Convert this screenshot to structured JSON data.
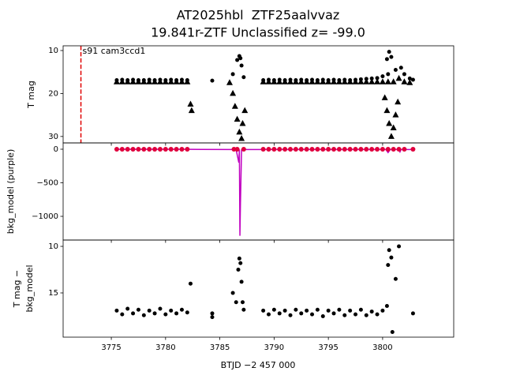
{
  "chart_data": [
    {
      "type": "scatter",
      "title": [
        "AT2025hbl  ZTF25aalvvaz",
        "19.841r-ZTF Unclassified z= -99.0"
      ],
      "ylabel": [
        "T mag"
      ],
      "xlim": [
        3770.56,
        3806.55
      ],
      "ylim": [
        31.5,
        8.9
      ],
      "yticks": [
        10,
        20,
        30
      ],
      "vlines": [
        {
          "x": 3772.2,
          "label": "s91 cam3ccd1",
          "color": "#e00000"
        }
      ],
      "series": [
        {
          "marker": "triangle",
          "color": "#000000",
          "x": [
            3775.5,
            3776,
            3776.5,
            3777,
            3777.5,
            3778,
            3778.5,
            3779,
            3779.5,
            3780,
            3780.5,
            3781,
            3781.5,
            3782,
            3782.3,
            3782.4,
            3785.9,
            3786.2,
            3786.4,
            3786.6,
            3786.8,
            3787.0,
            3787.1,
            3787.3,
            3789,
            3789.5,
            3790,
            3790.5,
            3791,
            3791.5,
            3792,
            3792.5,
            3793,
            3793.5,
            3794,
            3794.5,
            3795,
            3795.5,
            3796,
            3796.5,
            3797,
            3797.5,
            3798,
            3798.5,
            3799,
            3799.5,
            3800,
            3800.5,
            3801,
            3801.5,
            3802,
            3802.5,
            3800.2,
            3800.4,
            3800.6,
            3800.8,
            3801.0,
            3801.2,
            3801.4
          ],
          "values": [
            17.3,
            17.3,
            17.3,
            17.3,
            17.3,
            17.3,
            17.3,
            17.3,
            17.3,
            17.3,
            17.3,
            17.3,
            17.3,
            17.3,
            22.5,
            24,
            17.5,
            20,
            23,
            26,
            29,
            30.5,
            27,
            24,
            17.3,
            17.3,
            17.3,
            17.3,
            17.3,
            17.3,
            17.3,
            17.3,
            17.3,
            17.3,
            17.3,
            17.3,
            17.3,
            17.3,
            17.3,
            17.3,
            17.3,
            17.3,
            17.3,
            17.3,
            17.3,
            17.3,
            17.3,
            17.3,
            17.3,
            16.5,
            17.3,
            17.5,
            21,
            24,
            27,
            30,
            28,
            25,
            22
          ]
        },
        {
          "marker": "dot",
          "color": "#000000",
          "x": [
            3775.5,
            3776,
            3776.5,
            3777,
            3777.5,
            3778,
            3778.5,
            3779,
            3779.5,
            3780,
            3780.5,
            3781,
            3781.5,
            3782,
            3784.3,
            3786.2,
            3786.6,
            3786.8,
            3786.9,
            3787.0,
            3787.2,
            3789,
            3789.5,
            3790,
            3790.5,
            3791,
            3791.5,
            3792,
            3792.5,
            3793,
            3793.5,
            3794,
            3794.5,
            3795,
            3795.5,
            3796,
            3796.5,
            3797,
            3797.5,
            3798,
            3798.5,
            3799,
            3799.5,
            3800,
            3800.5,
            3800.4,
            3800.6,
            3800.8,
            3801.2,
            3801.7,
            3802,
            3802.5,
            3802.8
          ],
          "values": [
            16.9,
            16.8,
            16.9,
            16.8,
            16.9,
            16.9,
            16.8,
            16.9,
            16.8,
            16.9,
            16.8,
            16.9,
            16.8,
            16.9,
            17.0,
            15.5,
            12.2,
            11.3,
            11.8,
            13.5,
            16.2,
            16.9,
            16.8,
            16.9,
            16.8,
            16.9,
            16.8,
            16.9,
            16.8,
            16.9,
            16.8,
            16.9,
            16.8,
            16.9,
            16.8,
            16.9,
            16.8,
            16.9,
            16.8,
            16.7,
            16.6,
            16.5,
            16.4,
            16.0,
            15.5,
            12.0,
            10.3,
            11.5,
            14.5,
            14.0,
            15.5,
            16.5,
            16.8
          ]
        }
      ]
    },
    {
      "type": "scatter",
      "ylabel": [
        "bkg_model (purple)"
      ],
      "xlim": [
        3770.56,
        3806.55
      ],
      "ylim": [
        -1353,
        94
      ],
      "yticks": [
        {
          "value": 0,
          "label": "0"
        },
        {
          "value": -500,
          "label": "−500"
        },
        {
          "value": -1000,
          "label": "−1000"
        }
      ],
      "series": [
        {
          "marker": "line",
          "color": "#c000c0",
          "x": [
            3775.3,
            3782.2,
            3786.5,
            3786.75,
            3786.8,
            3786.85,
            3786.9,
            3787.0,
            3787.3,
            3788.9,
            3800.3,
            3800.5,
            3800.7,
            3801.5,
            3801.6,
            3801.7,
            3802.8
          ],
          "values": [
            -2,
            -2,
            -5,
            -200,
            -5,
            -1290,
            -800,
            -10,
            -5,
            -5,
            -5,
            -50,
            -5,
            -5,
            -40,
            -5,
            -5
          ]
        },
        {
          "marker": "dot",
          "color": "#e0003c",
          "x": [
            3775.5,
            3776,
            3776.5,
            3777,
            3777.5,
            3778,
            3778.5,
            3779,
            3779.5,
            3780,
            3780.5,
            3781,
            3781.5,
            3782,
            3786.3,
            3786.6,
            3787.2,
            3789,
            3789.5,
            3790,
            3790.5,
            3791,
            3791.5,
            3792,
            3792.5,
            3793,
            3793.5,
            3794,
            3794.5,
            3795,
            3795.5,
            3796,
            3796.5,
            3797,
            3797.5,
            3798,
            3798.5,
            3799,
            3799.5,
            3800,
            3800.5,
            3801,
            3801.5,
            3802,
            3802.8
          ],
          "values": [
            0,
            0,
            0,
            0,
            0,
            0,
            0,
            0,
            0,
            0,
            0,
            0,
            0,
            0,
            0,
            0,
            0,
            0,
            0,
            0,
            0,
            0,
            0,
            0,
            0,
            0,
            0,
            0,
            0,
            0,
            0,
            0,
            0,
            0,
            0,
            0,
            0,
            0,
            0,
            0,
            0,
            0,
            0,
            0,
            0
          ]
        }
      ]
    },
    {
      "type": "scatter",
      "ylabel": [
        "T mag −",
        "bkg_model"
      ],
      "xlabel": "BTJD −2 457 000",
      "xlim": [
        3770.56,
        3806.55
      ],
      "ylim": [
        19.75,
        9.32
      ],
      "yticks": [
        10,
        15
      ],
      "xticks": [
        3775,
        3780,
        3785,
        3790,
        3795,
        3800
      ],
      "series": [
        {
          "marker": "dot",
          "color": "#000000",
          "x": [
            3775.5,
            3776,
            3776.5,
            3777,
            3777.5,
            3778,
            3778.5,
            3779,
            3779.5,
            3780,
            3780.5,
            3781,
            3781.5,
            3782,
            3782.3,
            3784.3,
            3784.3,
            3786.2,
            3786.5,
            3786.7,
            3786.8,
            3786.9,
            3787.0,
            3787.1,
            3787.2,
            3789,
            3789.5,
            3790,
            3790.5,
            3791,
            3791.5,
            3792,
            3792.5,
            3793,
            3793.5,
            3794,
            3794.5,
            3795,
            3795.5,
            3796,
            3796.5,
            3797,
            3797.5,
            3798,
            3798.5,
            3799,
            3799.5,
            3800,
            3800.4,
            3800.5,
            3800.6,
            3800.8,
            3800.9,
            3801.2,
            3801.5,
            3802.8
          ],
          "values": [
            16.9,
            17.3,
            16.7,
            17.2,
            16.8,
            17.4,
            16.9,
            17.2,
            16.7,
            17.3,
            16.9,
            17.2,
            16.8,
            17.1,
            14.0,
            17.2,
            17.6,
            15.0,
            16.0,
            12.5,
            11.3,
            11.8,
            13.8,
            16.0,
            16.8,
            16.9,
            17.3,
            16.8,
            17.2,
            16.9,
            17.4,
            16.8,
            17.2,
            16.9,
            17.3,
            16.8,
            17.5,
            16.9,
            17.2,
            16.8,
            17.4,
            16.9,
            17.3,
            16.8,
            17.4,
            17.0,
            17.3,
            16.9,
            16.4,
            12.0,
            10.4,
            11.2,
            19.2,
            13.5,
            10.0,
            17.2
          ]
        }
      ]
    }
  ]
}
